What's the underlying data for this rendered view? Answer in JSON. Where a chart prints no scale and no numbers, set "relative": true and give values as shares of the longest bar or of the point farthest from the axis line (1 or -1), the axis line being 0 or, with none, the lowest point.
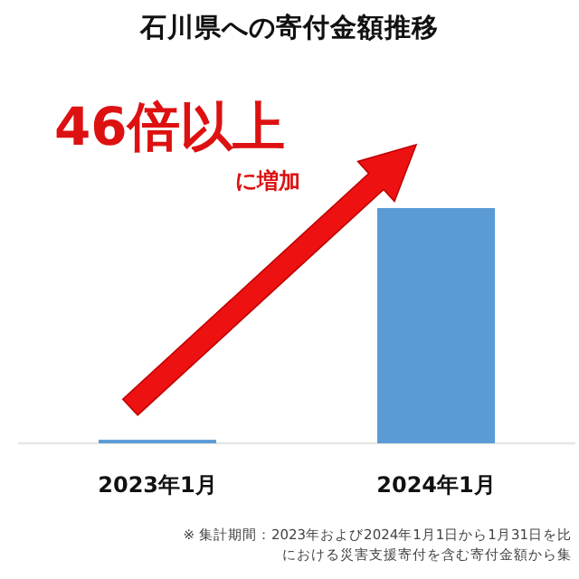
{
  "chart_data": {
    "type": "bar",
    "title": "石川県への寄付金額推移",
    "relative": true,
    "categories": [
      "2023年1月",
      "2024年1月"
    ],
    "values": [
      0.015,
      1
    ],
    "color": "#5b9bd5",
    "annotations": [
      "46倍以上",
      "に増加",
      "※ 集計期間：2023年および2024年1月1日から1月31日を比",
      "における災害支援寄付を含む寄付金額から集"
    ]
  }
}
